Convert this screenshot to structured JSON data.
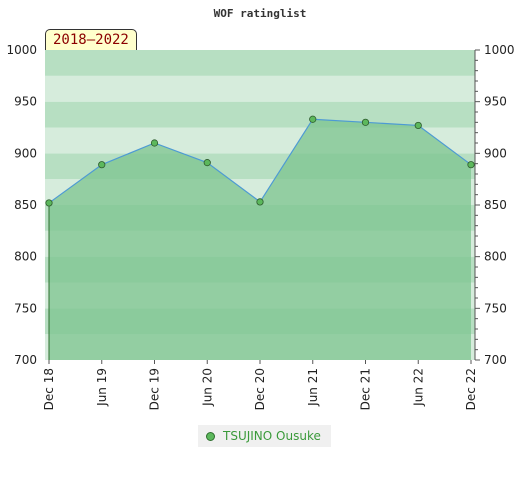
{
  "chart_data": {
    "type": "area",
    "title": "WOF ratinglist",
    "period_label": "2018–2022",
    "categories": [
      "Dec 18",
      "Jun 19",
      "Dec 19",
      "Jun 20",
      "Dec 20",
      "Jun 21",
      "Dec 21",
      "Jun 22",
      "Dec 22"
    ],
    "series": [
      {
        "name": "TSUJINO Ousuke",
        "values": [
          852,
          889,
          910,
          891,
          853,
          933,
          930,
          927,
          889
        ]
      }
    ],
    "ylim": [
      700,
      1000
    ],
    "yticks": [
      700,
      750,
      800,
      850,
      900,
      950,
      1000
    ],
    "y_axis": "both sides",
    "legend_position": "bottom-center",
    "colors": {
      "line": "#4d9ad4",
      "marker": "#5cb85c",
      "fill": "#7cc48f",
      "band_dark": "#b7dfc2",
      "band_light": "#d6ecdc"
    }
  }
}
